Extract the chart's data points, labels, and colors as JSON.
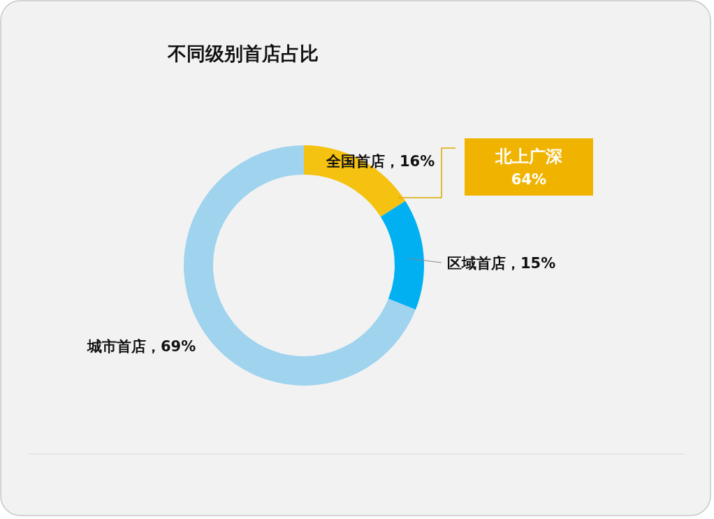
{
  "chart_data": {
    "type": "donut",
    "title": "不同级别首店占比",
    "categories": [
      "全国首店",
      "区域首店",
      "城市首店"
    ],
    "values": [
      16,
      15,
      69
    ],
    "colors": [
      "#f5c211",
      "#00b0f0",
      "#9fd3ee"
    ],
    "value_labels": [
      "16%",
      "15%",
      "69%"
    ],
    "annotations": [
      "北上广深",
      "64%"
    ]
  }
}
